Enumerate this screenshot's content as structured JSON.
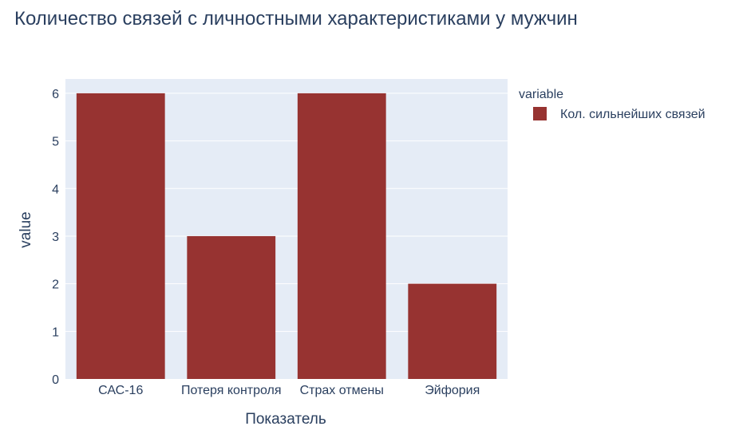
{
  "chart_data": {
    "type": "bar",
    "title": "Количество связей с личностными характеристиками у мужчин",
    "xlabel": "Показатель",
    "ylabel": "value",
    "categories": [
      "САС-16",
      "Потеря контроля",
      "Страх отмены",
      "Эйфория"
    ],
    "series": [
      {
        "name": "Кол. сильнейших связей",
        "values": [
          6,
          3,
          6,
          2
        ],
        "color": "#973331"
      }
    ],
    "ylim": [
      0,
      6.3
    ],
    "yticks": [
      0,
      1,
      2,
      3,
      4,
      5,
      6
    ],
    "grid": true,
    "legend": {
      "title": "variable",
      "placement": "top-right"
    },
    "plot_bgcolor": "#e5ecf6"
  }
}
